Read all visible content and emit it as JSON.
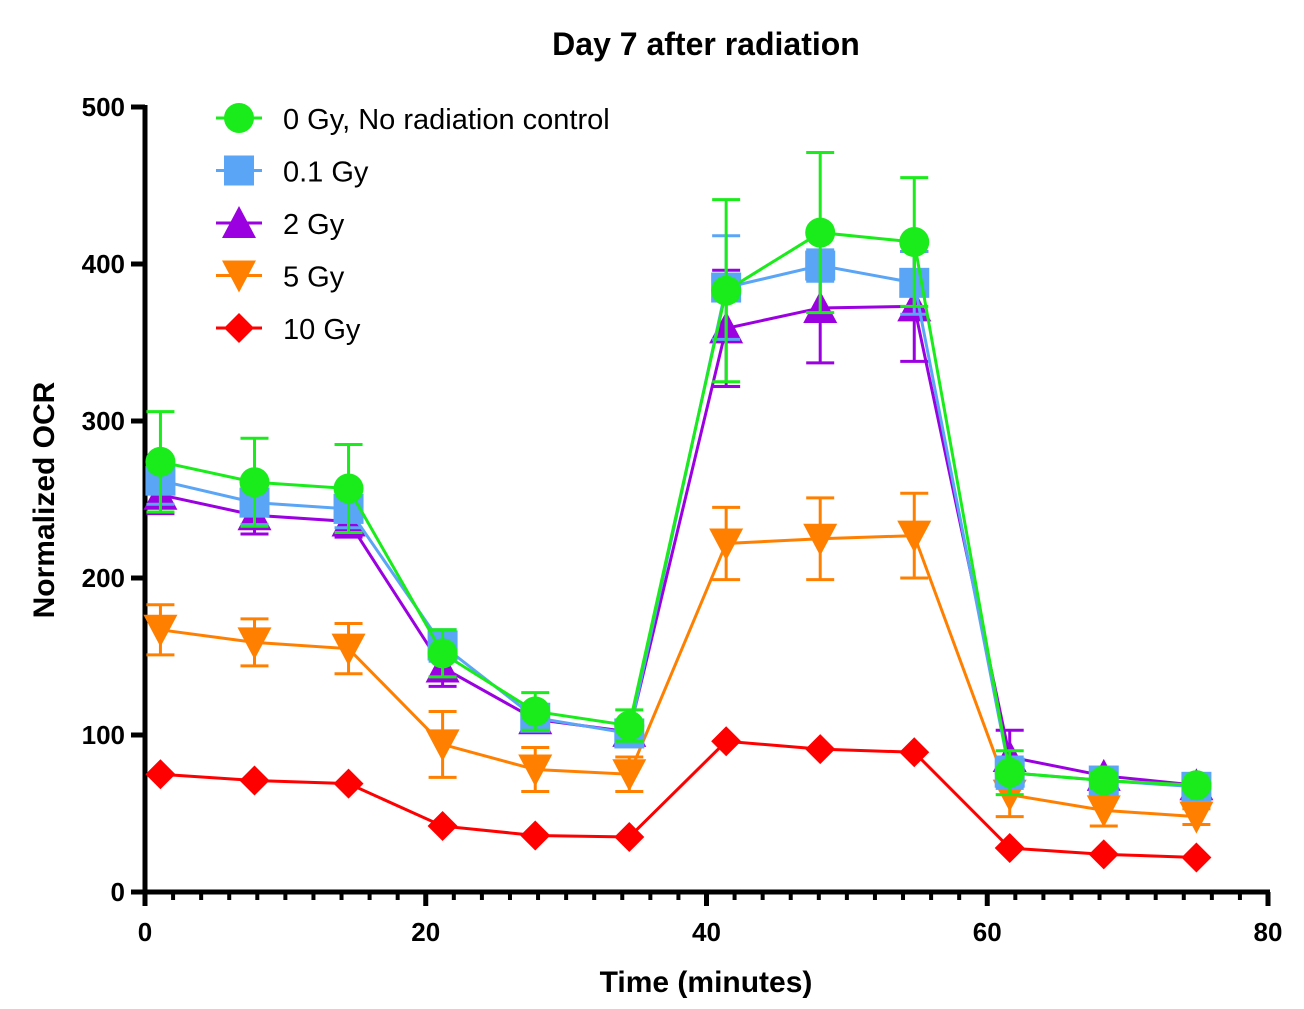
{
  "chart_data": {
    "type": "line",
    "title": "Day 7 after radiation",
    "xlabel": "Time (minutes)",
    "ylabel": "Normalized OCR",
    "xlim": [
      0,
      80
    ],
    "ylim": [
      0,
      500
    ],
    "xticks": [
      0,
      20,
      40,
      60,
      80
    ],
    "yticks": [
      0,
      100,
      200,
      300,
      400,
      500
    ],
    "legend_position": "top-left",
    "grid": false,
    "x": [
      1.1,
      7.8,
      14.5,
      21.2,
      27.8,
      34.5,
      41.4,
      48.1,
      54.8,
      61.6,
      68.3,
      74.9
    ],
    "series": [
      {
        "name": "10 Gy",
        "color": "#ff0000",
        "marker": "diamond",
        "values": [
          75,
          71,
          69,
          42,
          36,
          35,
          96,
          91,
          89,
          28,
          24,
          22
        ],
        "errors": [
          0,
          0,
          0,
          0,
          0,
          0,
          0,
          0,
          0,
          0,
          0,
          0
        ]
      },
      {
        "name": "5 Gy",
        "color": "#ff8000",
        "marker": "triangle-down",
        "values": [
          167,
          159,
          155,
          94,
          78,
          75,
          222,
          225,
          227,
          62,
          52,
          48
        ],
        "errors": [
          16,
          15,
          16,
          21,
          14,
          11,
          23,
          26,
          27,
          14,
          10,
          5
        ]
      },
      {
        "name": "2 Gy",
        "color": "#9b00e0",
        "marker": "triangle-up",
        "values": [
          253,
          240,
          236,
          143,
          110,
          102,
          359,
          372,
          373,
          86,
          74,
          68
        ],
        "errors": [
          12,
          12,
          10,
          12,
          8,
          5,
          37,
          35,
          35,
          17,
          5,
          3
        ]
      },
      {
        "name": "0.1 Gy",
        "color": "#5aa5f5",
        "marker": "square",
        "values": [
          262,
          248,
          244,
          157,
          111,
          101,
          385,
          399,
          388,
          76,
          71,
          67
        ],
        "errors": [
          15,
          14,
          12,
          10,
          8,
          6,
          33,
          10,
          20,
          10,
          5,
          4
        ]
      },
      {
        "name": "0 Gy, No radiation control",
        "color": "#1aeb1a",
        "marker": "circle",
        "values": [
          274,
          261,
          257,
          152,
          115,
          106,
          383,
          420,
          414,
          76,
          71,
          68
        ],
        "errors": [
          32,
          28,
          28,
          15,
          12,
          10,
          58,
          51,
          41,
          14,
          5,
          3
        ]
      }
    ]
  }
}
